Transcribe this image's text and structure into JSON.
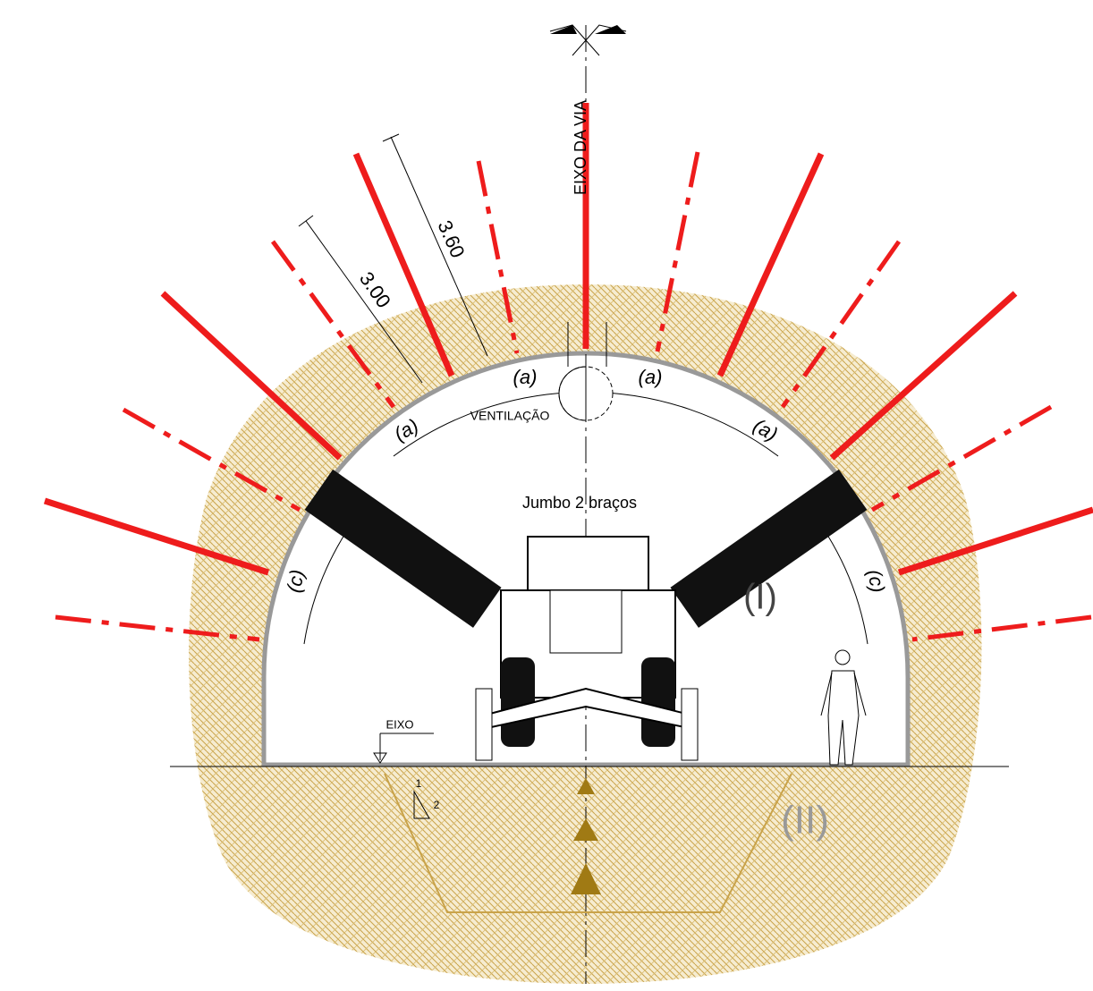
{
  "axis_label": "EIXO DA VIA",
  "dimensions": [
    "3.60",
    "3.00"
  ],
  "zone_labels": [
    "(a)",
    "(a)",
    "(a)",
    "(a)",
    "(c)",
    "(c)"
  ],
  "ventilation": "VENTILAÇÃO",
  "equipment": "Jumbo 2 braços",
  "phases": [
    "(I)",
    "(II)"
  ],
  "level": "EIXO",
  "slope": [
    "1",
    "2"
  ]
}
